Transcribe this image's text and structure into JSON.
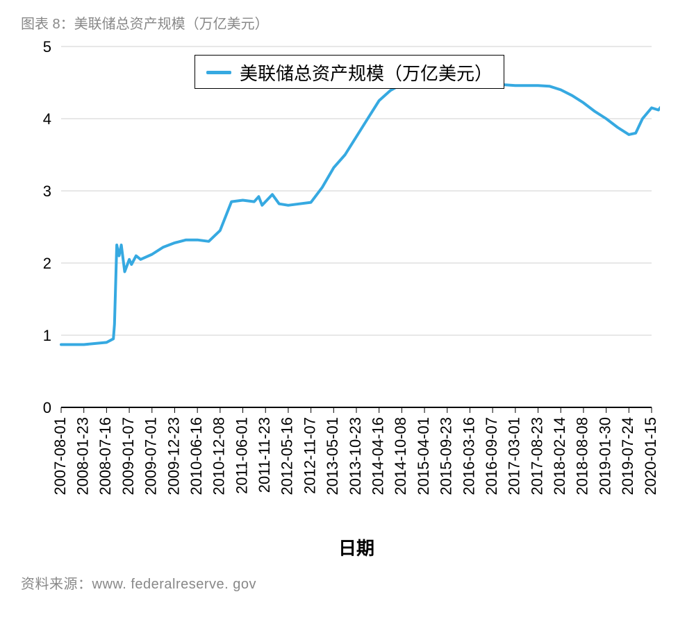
{
  "title": "图表 8：美联储总资产规模（万亿美元）",
  "source_label": "资料来源：",
  "source_url": "www. federalreserve. gov",
  "legend_label": "美联储总资产规模（万亿美元）",
  "xaxis_label": "日期",
  "chart": {
    "type": "line",
    "line_color": "#36a9e1",
    "line_width": 4,
    "background_color": "#ffffff",
    "grid_color": "#cfcfcf",
    "axis_color": "#000000",
    "tick_font_size": 22,
    "label_font_size": 26,
    "ylim": [
      0,
      5
    ],
    "ytick_step": 1,
    "x_ticks": [
      "2007-08-01",
      "2008-01-23",
      "2008-07-16",
      "2009-01-07",
      "2009-07-01",
      "2009-12-23",
      "2010-06-16",
      "2010-12-08",
      "2011-06-01",
      "2011-11-23",
      "2012-05-16",
      "2012-11-07",
      "2013-05-01",
      "2013-10-23",
      "2014-04-16",
      "2014-10-08",
      "2015-04-01",
      "2015-09-23",
      "2016-03-16",
      "2016-09-07",
      "2017-03-01",
      "2017-08-23",
      "2018-02-14",
      "2018-08-08",
      "2019-01-30",
      "2019-07-24",
      "2020-01-15"
    ],
    "series": {
      "name": "美联储总资产规模（万亿美元）",
      "points": [
        {
          "x": 0,
          "y": 0.87
        },
        {
          "x": 1,
          "y": 0.87
        },
        {
          "x": 2,
          "y": 0.9
        },
        {
          "x": 2.3,
          "y": 0.95
        },
        {
          "x": 2.35,
          "y": 1.15
        },
        {
          "x": 2.45,
          "y": 2.25
        },
        {
          "x": 2.55,
          "y": 2.1
        },
        {
          "x": 2.65,
          "y": 2.25
        },
        {
          "x": 2.8,
          "y": 1.88
        },
        {
          "x": 3.0,
          "y": 2.05
        },
        {
          "x": 3.1,
          "y": 1.98
        },
        {
          "x": 3.3,
          "y": 2.1
        },
        {
          "x": 3.5,
          "y": 2.05
        },
        {
          "x": 4.0,
          "y": 2.12
        },
        {
          "x": 4.5,
          "y": 2.22
        },
        {
          "x": 5.0,
          "y": 2.28
        },
        {
          "x": 5.5,
          "y": 2.32
        },
        {
          "x": 6.0,
          "y": 2.32
        },
        {
          "x": 6.5,
          "y": 2.3
        },
        {
          "x": 7.0,
          "y": 2.45
        },
        {
          "x": 7.5,
          "y": 2.85
        },
        {
          "x": 8.0,
          "y": 2.87
        },
        {
          "x": 8.5,
          "y": 2.85
        },
        {
          "x": 8.7,
          "y": 2.92
        },
        {
          "x": 8.85,
          "y": 2.8
        },
        {
          "x": 9.3,
          "y": 2.95
        },
        {
          "x": 9.6,
          "y": 2.82
        },
        {
          "x": 10.0,
          "y": 2.8
        },
        {
          "x": 10.5,
          "y": 2.82
        },
        {
          "x": 11.0,
          "y": 2.84
        },
        {
          "x": 11.5,
          "y": 3.05
        },
        {
          "x": 12.0,
          "y": 3.32
        },
        {
          "x": 12.5,
          "y": 3.5
        },
        {
          "x": 13.0,
          "y": 3.75
        },
        {
          "x": 13.5,
          "y": 4.0
        },
        {
          "x": 14.0,
          "y": 4.25
        },
        {
          "x": 14.5,
          "y": 4.39
        },
        {
          "x": 15.0,
          "y": 4.48
        },
        {
          "x": 15.5,
          "y": 4.5
        },
        {
          "x": 16.0,
          "y": 4.49
        },
        {
          "x": 16.5,
          "y": 4.48
        },
        {
          "x": 17.0,
          "y": 4.47
        },
        {
          "x": 17.5,
          "y": 4.48
        },
        {
          "x": 18.0,
          "y": 4.47
        },
        {
          "x": 18.5,
          "y": 4.48
        },
        {
          "x": 19.0,
          "y": 4.47
        },
        {
          "x": 19.5,
          "y": 4.47
        },
        {
          "x": 20.0,
          "y": 4.46
        },
        {
          "x": 20.5,
          "y": 4.46
        },
        {
          "x": 21.0,
          "y": 4.46
        },
        {
          "x": 21.5,
          "y": 4.45
        },
        {
          "x": 22.0,
          "y": 4.4
        },
        {
          "x": 22.5,
          "y": 4.32
        },
        {
          "x": 23.0,
          "y": 4.22
        },
        {
          "x": 23.5,
          "y": 4.1
        },
        {
          "x": 24.0,
          "y": 4.0
        },
        {
          "x": 24.5,
          "y": 3.88
        },
        {
          "x": 25.0,
          "y": 3.78
        },
        {
          "x": 25.3,
          "y": 3.8
        },
        {
          "x": 25.6,
          "y": 4.0
        },
        {
          "x": 26.0,
          "y": 4.15
        },
        {
          "x": 26.3,
          "y": 4.12
        },
        {
          "x": 26.5,
          "y": 4.2
        }
      ]
    }
  }
}
